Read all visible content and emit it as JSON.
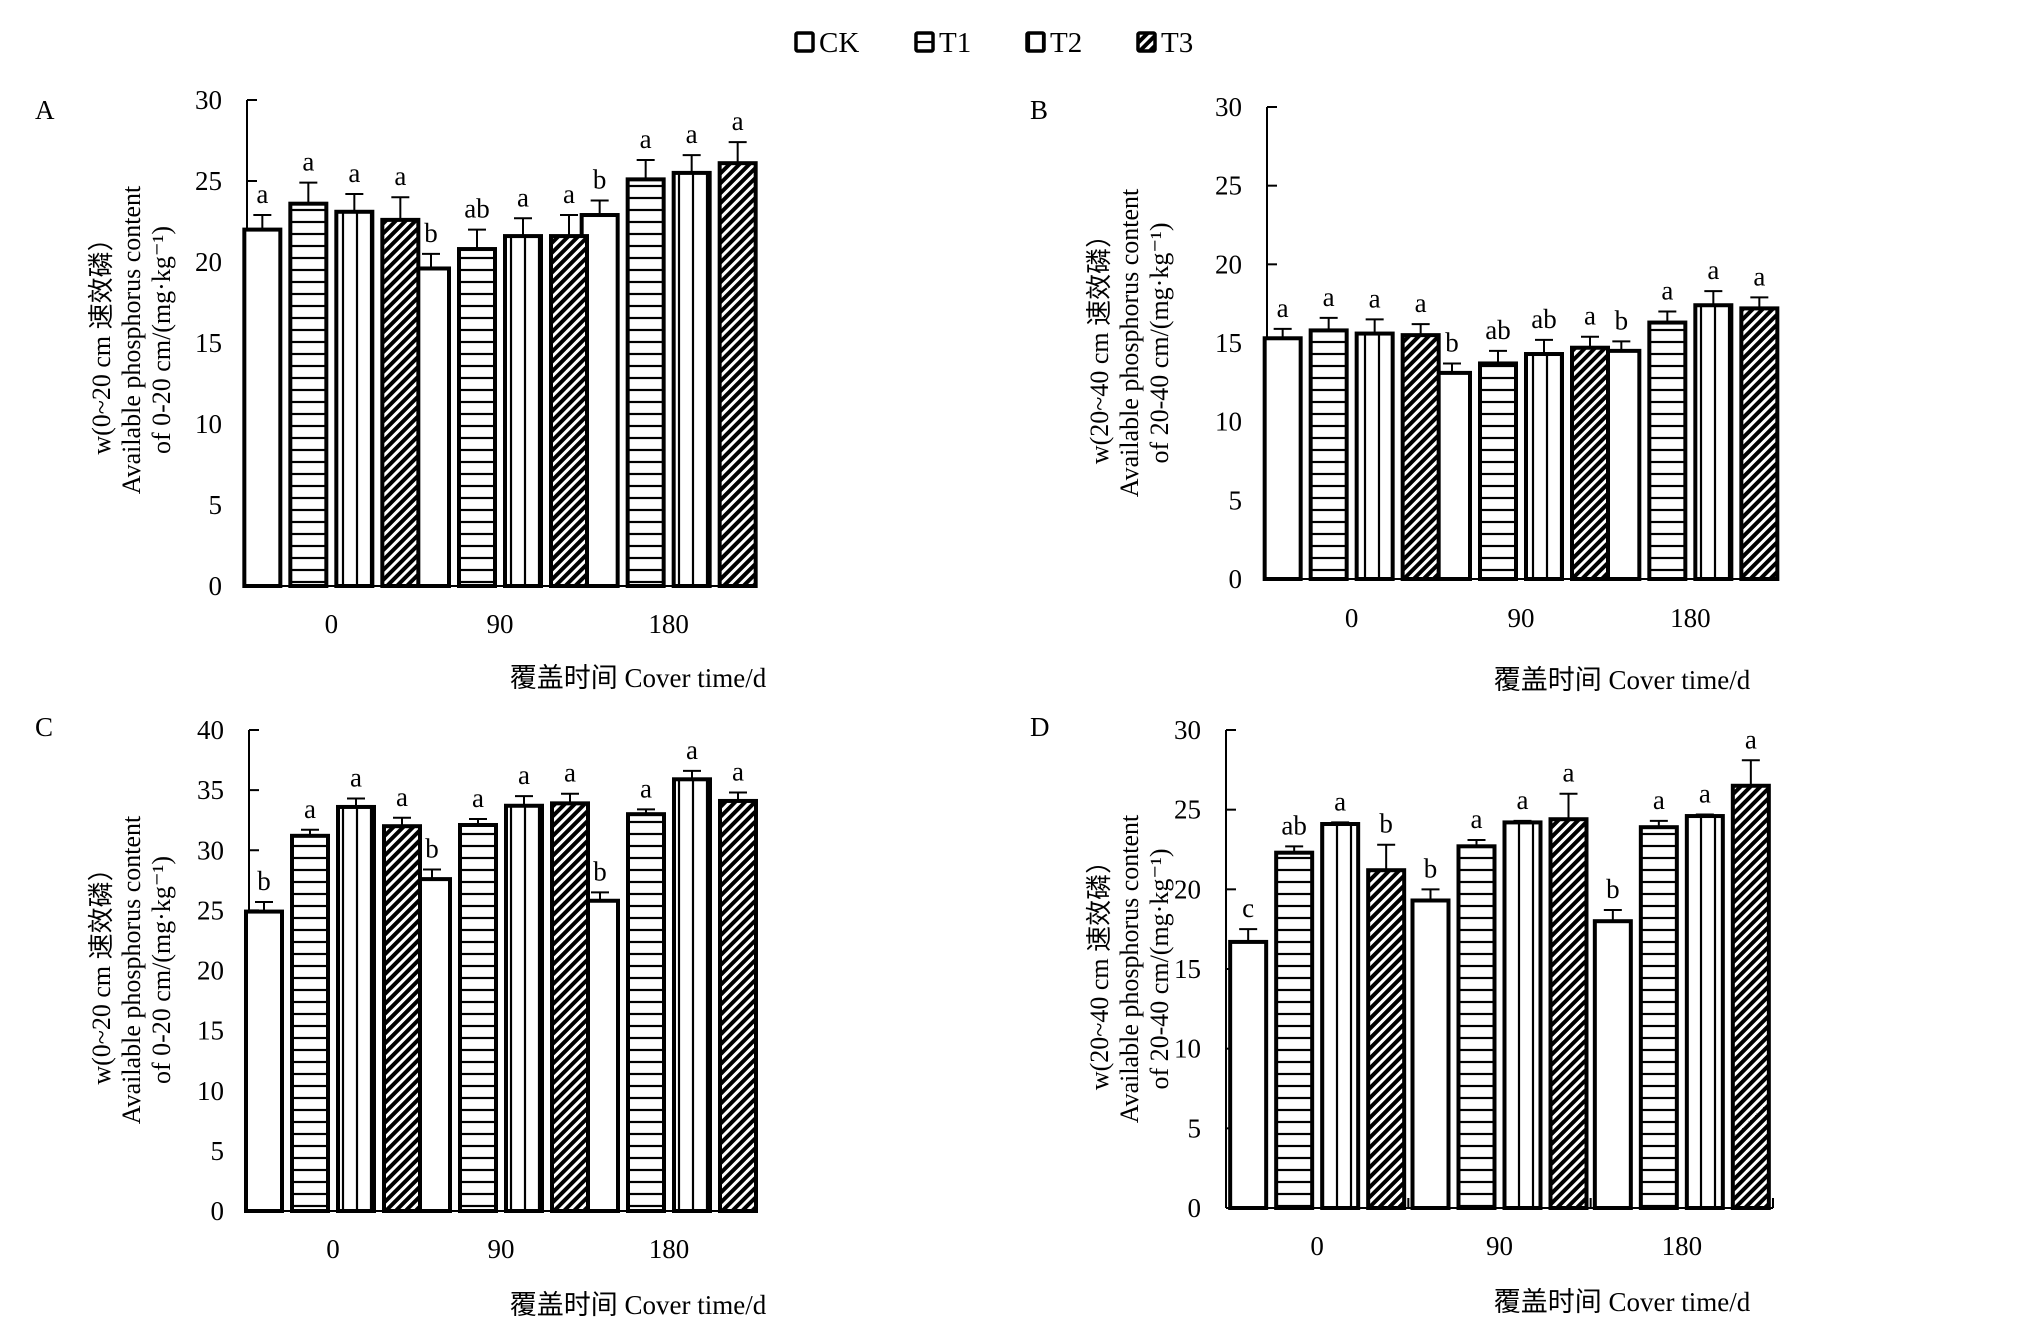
{
  "legend": [
    {
      "key": "CK",
      "label": "CK",
      "pattern": "none"
    },
    {
      "key": "T1",
      "label": "T1",
      "pattern": "horizontal"
    },
    {
      "key": "T2",
      "label": "T2",
      "pattern": "vertical"
    },
    {
      "key": "T3",
      "label": "T3",
      "pattern": "diagonal"
    }
  ],
  "chart_data": [
    {
      "panel": "A",
      "type": "bar",
      "title": "",
      "ylabel_lines": [
        "w(0~20 cm 速效磷）",
        "Available phosphorus content",
        "of 0-20 cm/(mg·kg⁻¹)"
      ],
      "xlabel": "覆盖时间 Cover time/d",
      "categories": [
        "0",
        "90",
        "180"
      ],
      "ylim": [
        0,
        30
      ],
      "yticks": [
        0,
        5,
        10,
        15,
        20,
        25,
        30
      ],
      "series": [
        {
          "name": "CK",
          "values": [
            22.0,
            19.6,
            22.9
          ],
          "errors": [
            0.9,
            0.9,
            0.9
          ],
          "letters": [
            "a",
            "b",
            "b"
          ]
        },
        {
          "name": "T1",
          "values": [
            23.6,
            20.8,
            25.1
          ],
          "errors": [
            1.3,
            1.2,
            1.2
          ],
          "letters": [
            "a",
            "ab",
            "a"
          ]
        },
        {
          "name": "T2",
          "values": [
            23.1,
            21.6,
            25.5
          ],
          "errors": [
            1.1,
            1.1,
            1.1
          ],
          "letters": [
            "a",
            "a",
            "a"
          ]
        },
        {
          "name": "T3",
          "values": [
            22.6,
            21.6,
            26.1
          ],
          "errors": [
            1.4,
            1.3,
            1.3
          ],
          "letters": [
            "a",
            "a",
            "a"
          ]
        }
      ]
    },
    {
      "panel": "B",
      "type": "bar",
      "title": "",
      "ylabel_lines": [
        "w(20~40 cm 速效磷）",
        "Available phosphorus content",
        "of 20-40 cm/(mg·kg⁻¹)"
      ],
      "xlabel": "覆盖时间 Cover time/d",
      "categories": [
        "0",
        "90",
        "180"
      ],
      "ylim": [
        0,
        30
      ],
      "yticks": [
        0,
        5,
        10,
        15,
        20,
        25,
        30
      ],
      "series": [
        {
          "name": "CK",
          "values": [
            15.3,
            13.1,
            14.5
          ],
          "errors": [
            0.6,
            0.6,
            0.6
          ],
          "letters": [
            "a",
            "b",
            "b"
          ]
        },
        {
          "name": "T1",
          "values": [
            15.8,
            13.7,
            16.3
          ],
          "errors": [
            0.8,
            0.8,
            0.7
          ],
          "letters": [
            "a",
            "ab",
            "a"
          ]
        },
        {
          "name": "T2",
          "values": [
            15.6,
            14.3,
            17.4
          ],
          "errors": [
            0.9,
            0.9,
            0.9
          ],
          "letters": [
            "a",
            "ab",
            "a"
          ]
        },
        {
          "name": "T3",
          "values": [
            15.5,
            14.7,
            17.2
          ],
          "errors": [
            0.7,
            0.7,
            0.7
          ],
          "letters": [
            "a",
            "a",
            "a"
          ]
        }
      ]
    },
    {
      "panel": "C",
      "type": "bar",
      "title": "",
      "ylabel_lines": [
        "w(0~20 cm 速效磷）",
        "Available phosphorus content",
        "of 0-20 cm/(mg·kg⁻¹)"
      ],
      "xlabel": "覆盖时间 Cover time/d",
      "categories": [
        "0",
        "90",
        "180"
      ],
      "ylim": [
        0,
        40
      ],
      "yticks": [
        0,
        5,
        10,
        15,
        20,
        25,
        30,
        35,
        40
      ],
      "series": [
        {
          "name": "CK",
          "values": [
            24.9,
            27.6,
            25.8
          ],
          "errors": [
            0.8,
            0.8,
            0.7
          ],
          "letters": [
            "b",
            "b",
            "b"
          ]
        },
        {
          "name": "T1",
          "values": [
            31.2,
            32.1,
            33.0
          ],
          "errors": [
            0.5,
            0.5,
            0.4
          ],
          "letters": [
            "a",
            "a",
            "a"
          ]
        },
        {
          "name": "T2",
          "values": [
            33.6,
            33.7,
            35.9
          ],
          "errors": [
            0.7,
            0.8,
            0.7
          ],
          "letters": [
            "a",
            "a",
            "a"
          ]
        },
        {
          "name": "T3",
          "values": [
            32.0,
            33.9,
            34.1
          ],
          "errors": [
            0.7,
            0.8,
            0.7
          ],
          "letters": [
            "a",
            "a",
            "a"
          ]
        }
      ]
    },
    {
      "panel": "D",
      "type": "bar",
      "title": "",
      "ylabel_lines": [
        "w(20~40 cm 速效磷）",
        "Available phosphorus content",
        "of 20-40 cm/(mg·kg⁻¹)"
      ],
      "xlabel": "覆盖时间 Cover time/d",
      "categories": [
        "0",
        "90",
        "180"
      ],
      "ylim": [
        0,
        30
      ],
      "yticks": [
        0,
        5,
        10,
        15,
        20,
        25,
        30
      ],
      "series": [
        {
          "name": "CK",
          "values": [
            16.7,
            19.3,
            18.0
          ],
          "errors": [
            0.8,
            0.7,
            0.7
          ],
          "letters": [
            "c",
            "b",
            "b"
          ]
        },
        {
          "name": "T1",
          "values": [
            22.3,
            22.7,
            23.9
          ],
          "errors": [
            0.4,
            0.4,
            0.4
          ],
          "letters": [
            "ab",
            "a",
            "a"
          ]
        },
        {
          "name": "T2",
          "values": [
            24.1,
            24.2,
            24.6
          ],
          "errors": [
            0.1,
            0.1,
            0.1
          ],
          "letters": [
            "a",
            "a",
            "a"
          ]
        },
        {
          "name": "T3",
          "values": [
            21.2,
            24.4,
            26.5
          ],
          "errors": [
            1.6,
            1.6,
            1.6
          ],
          "letters": [
            "b",
            "a",
            "a"
          ]
        }
      ]
    }
  ]
}
